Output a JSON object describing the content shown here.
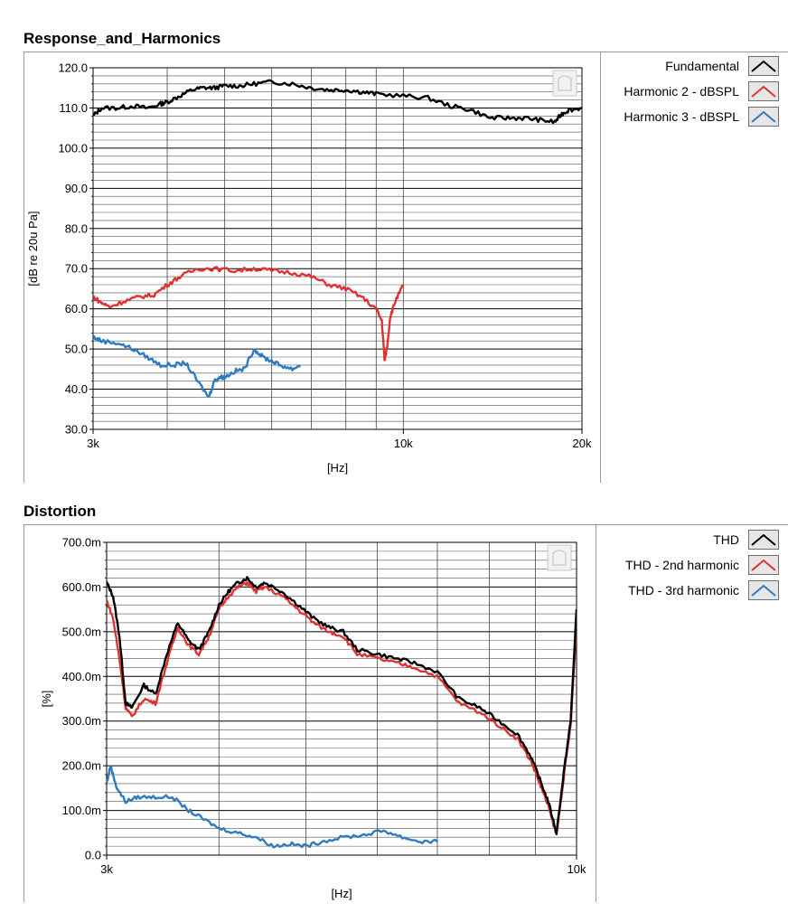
{
  "panels": [
    {
      "title": "Response_and_Harmonics",
      "legend": [
        {
          "label": "Fundamental",
          "color": "#000000"
        },
        {
          "label": "Harmonic 2 - dBSPL",
          "color": "#e03030"
        },
        {
          "label": "Harmonic 3 - dBSPL",
          "color": "#2e7bbf"
        }
      ]
    },
    {
      "title": "Distortion",
      "legend": [
        {
          "label": "THD",
          "color": "#000000"
        },
        {
          "label": "THD - 2nd harmonic",
          "color": "#e03030"
        },
        {
          "label": "THD - 3rd harmonic",
          "color": "#2e7bbf"
        }
      ]
    }
  ],
  "chart_data": [
    {
      "type": "line",
      "title": "Response_and_Harmonics",
      "xlabel": "[Hz]",
      "ylabel": "[dB re 20u Pa]",
      "xscale": "log",
      "xlim": [
        3000,
        20000
      ],
      "ylim": [
        30,
        120
      ],
      "xticks": [
        3000,
        10000,
        20000
      ],
      "xtick_labels": [
        "3k",
        "10k",
        "20k"
      ],
      "yticks": [
        30,
        40,
        50,
        60,
        70,
        80,
        90,
        100,
        110,
        120
      ],
      "ytick_labels": [
        "30.0",
        "40.0",
        "50.0",
        "60.0",
        "70.0",
        "80.0",
        "90.0",
        "100.0",
        "110.0",
        "120.0"
      ],
      "grid": true,
      "legend_position": "right",
      "series": [
        {
          "name": "Fundamental",
          "color": "#000000",
          "x": [
            3000,
            3100,
            3300,
            3500,
            3700,
            3900,
            4000,
            4200,
            4400,
            4600,
            4800,
            5000,
            5300,
            5600,
            6000,
            6500,
            7000,
            7500,
            8000,
            8500,
            9000,
            10000,
            11000,
            12000,
            13000,
            14000,
            15000,
            16000,
            17000,
            18000,
            18500,
            19000,
            20000
          ],
          "y": [
            108,
            110,
            110,
            110.5,
            110,
            111,
            111.5,
            113,
            114.5,
            115,
            115,
            115.5,
            115.5,
            116,
            116.5,
            116,
            115,
            114.5,
            114.5,
            114,
            113.5,
            113,
            112.5,
            110.5,
            109.5,
            107.5,
            107.5,
            107.5,
            107,
            106.5,
            108.5,
            109.5,
            110
          ]
        },
        {
          "name": "Harmonic 2 - dBSPL",
          "color": "#e03030",
          "x": [
            3000,
            3100,
            3200,
            3400,
            3600,
            3800,
            4000,
            4200,
            4500,
            4800,
            5200,
            5600,
            6000,
            6500,
            7000,
            7500,
            8000,
            8500,
            9000,
            9200,
            9300,
            9400,
            9500,
            9700,
            10000
          ],
          "y": [
            63,
            61.5,
            60.5,
            62,
            63,
            63.5,
            66,
            68,
            70,
            70,
            69.5,
            70,
            69.5,
            69,
            68,
            66,
            65,
            63,
            60,
            57,
            47,
            51,
            58,
            62,
            66
          ]
        },
        {
          "name": "Harmonic 3 - dBSPL",
          "color": "#2e7bbf",
          "x": [
            3000,
            3100,
            3300,
            3500,
            3700,
            3900,
            4100,
            4300,
            4500,
            4700,
            4800,
            4900,
            5000,
            5200,
            5400,
            5600,
            5800,
            6000,
            6200,
            6500,
            6700
          ],
          "y": [
            53,
            52,
            51.5,
            50,
            48,
            46,
            46,
            46.5,
            42,
            38,
            42,
            43,
            43,
            44.5,
            45,
            50,
            48,
            47,
            46,
            45,
            46
          ]
        }
      ]
    },
    {
      "type": "line",
      "title": "Distortion",
      "xlabel": "[Hz]",
      "ylabel": "[%]",
      "xscale": "log",
      "xlim": [
        3000,
        10000
      ],
      "ylim": [
        0,
        0.7
      ],
      "xticks": [
        3000,
        10000
      ],
      "xtick_labels": [
        "3k",
        "10k"
      ],
      "yticks": [
        0,
        0.1,
        0.2,
        0.3,
        0.4,
        0.5,
        0.6,
        0.7
      ],
      "ytick_labels": [
        "0.0",
        "100.0m",
        "200.0m",
        "300.0m",
        "400.0m",
        "500.0m",
        "600.0m",
        "700.0m"
      ],
      "grid": true,
      "legend_position": "right",
      "series": [
        {
          "name": "THD",
          "color": "#000000",
          "x": [
            3000,
            3050,
            3100,
            3150,
            3200,
            3300,
            3400,
            3500,
            3600,
            3700,
            3800,
            3900,
            4000,
            4100,
            4200,
            4300,
            4400,
            4500,
            4700,
            4900,
            5100,
            5300,
            5500,
            5700,
            6000,
            6300,
            6600,
            7000,
            7400,
            7800,
            8200,
            8600,
            8900,
            9100,
            9300,
            9500,
            9700,
            9850,
            10000
          ],
          "y": [
            0.61,
            0.58,
            0.49,
            0.34,
            0.33,
            0.38,
            0.36,
            0.45,
            0.52,
            0.48,
            0.46,
            0.5,
            0.56,
            0.59,
            0.61,
            0.62,
            0.6,
            0.61,
            0.59,
            0.56,
            0.53,
            0.51,
            0.5,
            0.46,
            0.45,
            0.44,
            0.43,
            0.41,
            0.35,
            0.33,
            0.3,
            0.27,
            0.22,
            0.17,
            0.12,
            0.05,
            0.2,
            0.3,
            0.55
          ]
        },
        {
          "name": "THD - 2nd harmonic",
          "color": "#e03030",
          "x": [
            3000,
            3050,
            3100,
            3150,
            3200,
            3300,
            3400,
            3500,
            3600,
            3700,
            3800,
            3900,
            4000,
            4100,
            4200,
            4300,
            4400,
            4500,
            4700,
            4900,
            5100,
            5300,
            5500,
            5700,
            6000,
            6300,
            6600,
            7000,
            7400,
            7800,
            8200,
            8600,
            8900,
            9100,
            9300,
            9500,
            9700,
            9850,
            10000
          ],
          "y": [
            0.57,
            0.53,
            0.44,
            0.33,
            0.31,
            0.35,
            0.34,
            0.43,
            0.51,
            0.47,
            0.45,
            0.49,
            0.55,
            0.58,
            0.6,
            0.61,
            0.59,
            0.6,
            0.58,
            0.55,
            0.52,
            0.5,
            0.49,
            0.45,
            0.44,
            0.43,
            0.42,
            0.4,
            0.34,
            0.32,
            0.29,
            0.26,
            0.21,
            0.16,
            0.11,
            0.045,
            0.19,
            0.29,
            0.52
          ]
        },
        {
          "name": "THD - 3rd harmonic",
          "color": "#2e7bbf",
          "x": [
            3000,
            3030,
            3080,
            3150,
            3250,
            3400,
            3550,
            3700,
            3850,
            4000,
            4200,
            4400,
            4600,
            4800,
            5000,
            5200,
            5500,
            5800,
            6100,
            6400,
            6700,
            7000
          ],
          "y": [
            0.16,
            0.2,
            0.15,
            0.12,
            0.13,
            0.13,
            0.13,
            0.1,
            0.08,
            0.06,
            0.05,
            0.04,
            0.02,
            0.025,
            0.02,
            0.03,
            0.04,
            0.045,
            0.055,
            0.04,
            0.03,
            0.03
          ]
        }
      ]
    }
  ]
}
